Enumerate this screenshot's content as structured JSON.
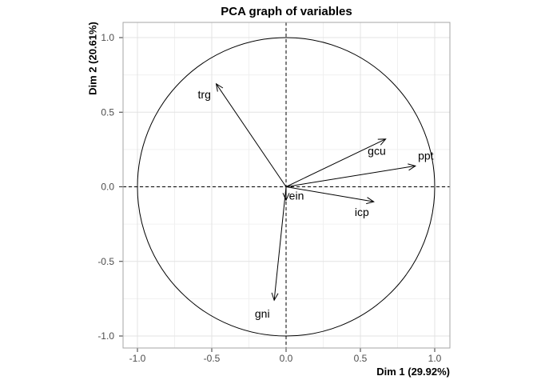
{
  "chart_data": {
    "type": "scatter",
    "subtype": "pca-variables-correlation-circle",
    "title": "PCA graph of variables",
    "xlabel": "Dim 1 (29.92%)",
    "ylabel": "Dim 2 (20.61%)",
    "xlim": [
      -1.1,
      1.1
    ],
    "ylim": [
      -1.1,
      1.1
    ],
    "x_ticks": {
      "values": [
        -1.0,
        -0.5,
        0.0,
        0.5,
        1.0
      ],
      "labels": [
        "-1.0",
        "-0.5",
        "0.0",
        "0.5",
        "1.0"
      ]
    },
    "y_ticks": {
      "values": [
        -1.0,
        -0.5,
        0.0,
        0.5,
        1.0
      ],
      "labels": [
        "-1.0",
        "-0.5",
        "0.0",
        "0.5",
        "1.0"
      ]
    },
    "grid": {
      "on": true,
      "minor_values": [
        -0.75,
        -0.25,
        0.25,
        0.75
      ]
    },
    "unit_circle": true,
    "reference_lines": {
      "x": 0,
      "y": 0,
      "style": "dashed"
    },
    "legend": "none",
    "variables": [
      {
        "name": "trg",
        "x": -0.47,
        "y": 0.69,
        "label_x": -0.55,
        "label_y": 0.62
      },
      {
        "name": "gcu",
        "x": 0.67,
        "y": 0.32,
        "label_x": 0.61,
        "label_y": 0.24
      },
      {
        "name": "ppt",
        "x": 0.87,
        "y": 0.14,
        "label_x": 0.94,
        "label_y": 0.21
      },
      {
        "name": "icp",
        "x": 0.59,
        "y": -0.1,
        "label_x": 0.51,
        "label_y": -0.17
      },
      {
        "name": "ein",
        "x": 0.0,
        "y": -0.09,
        "label_x": 0.07,
        "label_y": -0.06
      },
      {
        "name": "gni",
        "x": -0.08,
        "y": -0.76,
        "label_x": -0.16,
        "label_y": -0.85
      }
    ],
    "colors": {
      "background": "#ffffff",
      "arrow": "#000000",
      "variable_label": "#000000",
      "circle": "#000000",
      "reference_line": "#000000",
      "grid_major": "#e3e3e3",
      "grid_minor": "#f0f0f0",
      "panel_border": "#a6a6a6",
      "tick_mark": "#333333",
      "tick_label": "#4d4d4d",
      "axis_title": "#000000",
      "title": "#000000"
    }
  }
}
